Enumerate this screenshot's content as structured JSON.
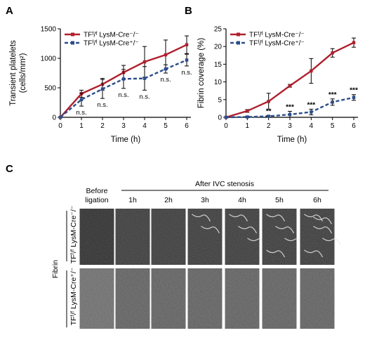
{
  "panels": {
    "a": "A",
    "b": "B",
    "c": "C"
  },
  "colors": {
    "wt": "#b0202e",
    "ko": "#2c4d8c",
    "axis": "#000000"
  },
  "chart_data": [
    {
      "type": "line",
      "x": [
        0,
        1,
        2,
        3,
        4,
        5,
        6
      ],
      "xlabel": "Time (h)",
      "ylabel_line1": "Transient platelets",
      "ylabel_line2": "(cells/mm²)",
      "ylim": [
        0,
        1500
      ],
      "yticks": [
        0,
        500,
        1000,
        1500
      ],
      "xticks": [
        0,
        1,
        2,
        3,
        4,
        5,
        6
      ],
      "legend": "top-left",
      "series": [
        {
          "name": "TFᶠ/ᶠ LysM-Cre⁻/⁻",
          "values": [
            0,
            400,
            560,
            760,
            940,
            1060,
            1230
          ],
          "errors": [
            0,
            60,
            100,
            120,
            260,
            250,
            150
          ],
          "style": "solid"
        },
        {
          "name": "TFᶠ/ᶠ LysM-Cre⁺/⁻",
          "values": [
            0,
            300,
            480,
            650,
            660,
            820,
            970
          ],
          "errors": [
            0,
            110,
            160,
            160,
            200,
            70,
            100
          ],
          "style": "dashed"
        }
      ],
      "annotations": [
        {
          "x": 1,
          "text": "n.s."
        },
        {
          "x": 2,
          "text": "n.s."
        },
        {
          "x": 3,
          "text": "n.s."
        },
        {
          "x": 4,
          "text": "n.s."
        },
        {
          "x": 5,
          "text": "n.s."
        },
        {
          "x": 6,
          "text": "n.s."
        }
      ]
    },
    {
      "type": "line",
      "x": [
        0,
        1,
        2,
        3,
        4,
        5,
        6
      ],
      "xlabel": "Time (h)",
      "ylabel": "Fibrin coverage (%)",
      "ylim": [
        0,
        25
      ],
      "yticks": [
        0,
        5,
        10,
        15,
        20,
        25
      ],
      "xticks": [
        0,
        1,
        2,
        3,
        4,
        5,
        6
      ],
      "legend": "top-left",
      "series": [
        {
          "name": "TFᶠ/ᶠ LysM-Cre⁻/⁻",
          "values": [
            0,
            1.8,
            4.5,
            8.9,
            13.1,
            18.2,
            21.1
          ],
          "errors": [
            0,
            0.4,
            2.3,
            0.4,
            3.5,
            1.2,
            1.3
          ],
          "style": "solid"
        },
        {
          "name": "TFᶠ/ᶠ LysM-Cre⁺/⁻",
          "values": [
            0,
            0.1,
            0.3,
            0.8,
            1.5,
            4.3,
            5.6
          ],
          "errors": [
            0,
            0.1,
            0.2,
            0.9,
            0.8,
            0.9,
            0.8
          ],
          "style": "dashed"
        }
      ],
      "annotations": [
        {
          "x": 2,
          "text": "**"
        },
        {
          "x": 3,
          "text": "***"
        },
        {
          "x": 4,
          "text": "***"
        },
        {
          "x": 5,
          "text": "***"
        },
        {
          "x": 6,
          "text": "***"
        }
      ]
    }
  ],
  "panel_c": {
    "before_line1": "Before",
    "before_line2": "ligation",
    "after_title": "After IVC stenosis",
    "time_labels": [
      "1h",
      "2h",
      "3h",
      "4h",
      "5h",
      "6h"
    ],
    "row_group_label": "Fibrin",
    "row_labels": [
      "TFᶠ/ᶠ LysM-Cre⁻/⁻",
      "TFᶠ/ᶠ LysM-Cre⁺/⁻"
    ]
  }
}
